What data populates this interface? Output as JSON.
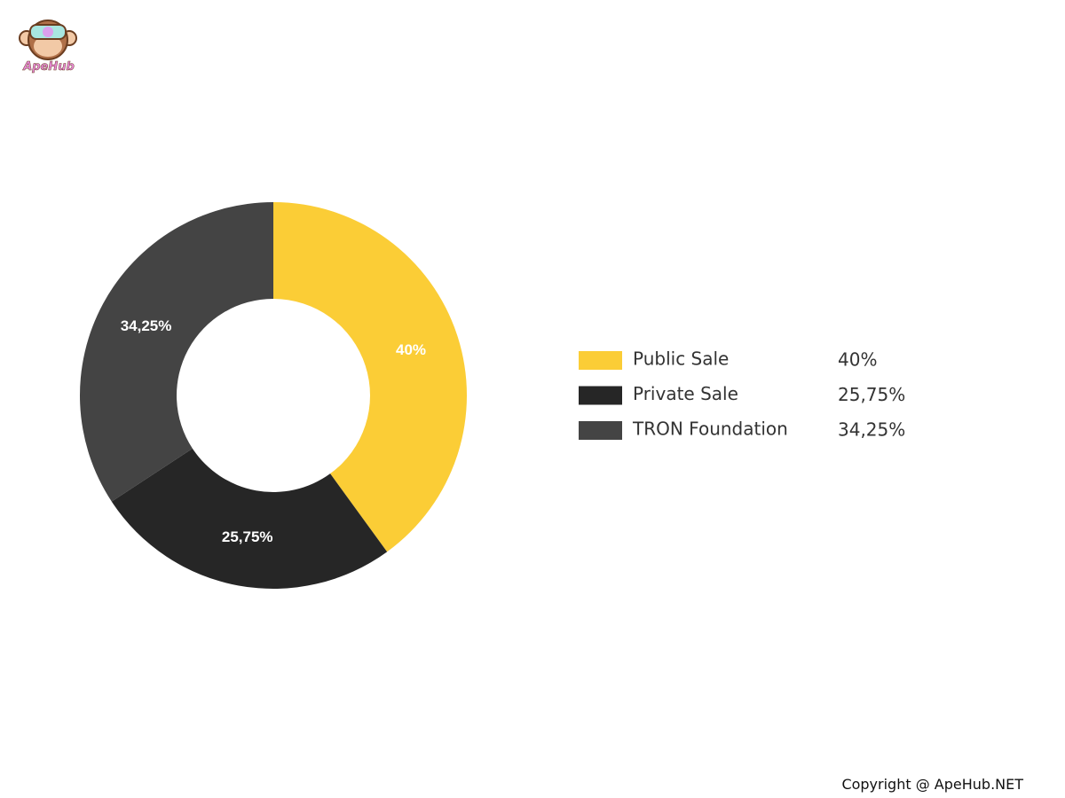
{
  "logo": "ApeHub",
  "footer": "Copyright @ ApeHub.NET",
  "chart_data": {
    "type": "donut",
    "categories": [
      "Public Sale",
      "Private Sale",
      "TRON Foundation"
    ],
    "values": [
      40,
      25.75,
      34.25
    ],
    "value_labels": [
      "40%",
      "25,75%",
      "34,25%"
    ],
    "colors": [
      "#fbcd36",
      "#262626",
      "#444444"
    ]
  }
}
